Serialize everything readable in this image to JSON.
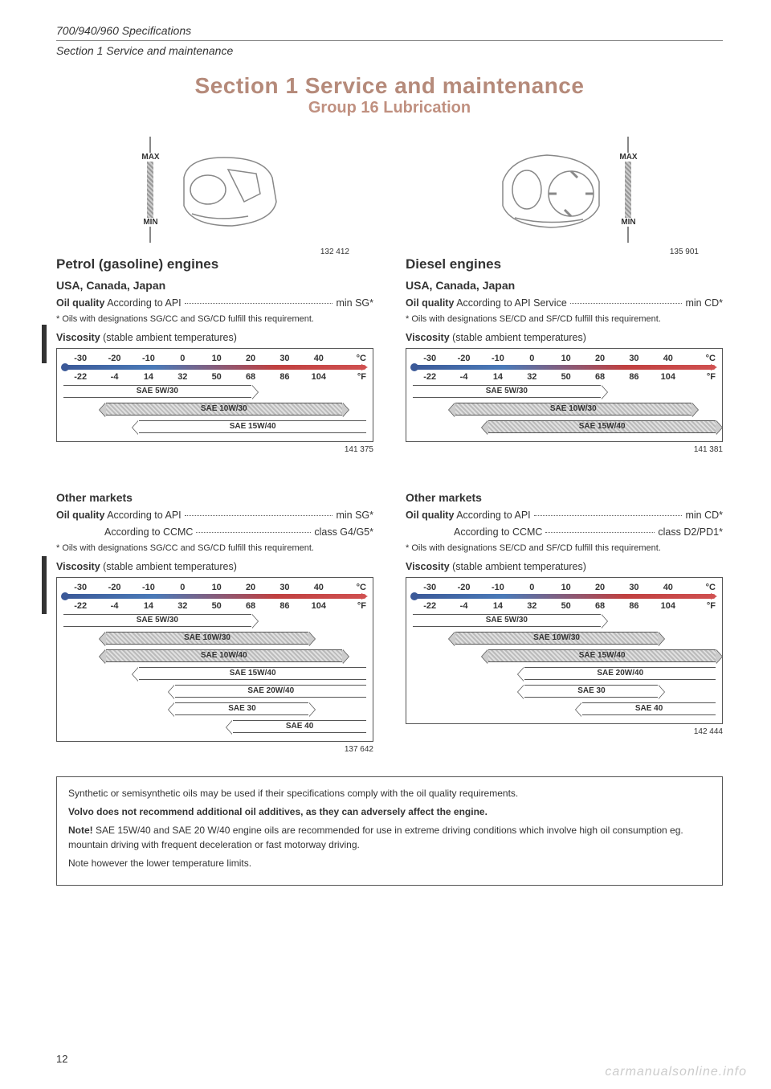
{
  "header": {
    "line1": "700/940/960 Specifications",
    "line2": "Section 1 Service and maintenance"
  },
  "title": {
    "main": "Section 1  Service and maintenance",
    "sub": "Group 16  Lubrication"
  },
  "dipstick": {
    "max": "MAX",
    "min": "MIN"
  },
  "figures": {
    "left_engine": "132 412",
    "right_engine": "135 901",
    "chart1": "141 375",
    "chart2": "141 381",
    "chart3": "137 642",
    "chart4": "142 444"
  },
  "petrol": {
    "heading": "Petrol (gasoline) engines",
    "region1": "USA, Canada, Japan",
    "oil_quality_label": "Oil quality",
    "oil_quality_text": " According to API",
    "oil_quality_value": "min SG*",
    "footnote": "* Oils with designations SG/CC and SG/CD fulfill this requirement.",
    "viscosity_label": "Viscosity",
    "viscosity_text": " (stable ambient temperatures)",
    "region2": "Other markets",
    "ccmc_label": "According to CCMC",
    "ccmc_value": "class G4/G5*"
  },
  "diesel": {
    "heading": "Diesel engines",
    "region1": "USA, Canada, Japan",
    "oil_quality_text": " According to API Service ",
    "oil_quality_value": "min CD*",
    "footnote": "* Oils with designations SE/CD and SF/CD fulfill this requirement.",
    "region2": "Other markets",
    "oil_quality_value2": "min CD*",
    "ccmc_value": "class D2/PD1*"
  },
  "temp_axis": {
    "c_values": [
      "-30",
      "-20",
      "-10",
      "0",
      "10",
      "20",
      "30",
      "40"
    ],
    "c_unit": "°C",
    "f_values": [
      "-22",
      "-4",
      "14",
      "32",
      "50",
      "68",
      "86",
      "104"
    ],
    "f_unit": "°F"
  },
  "oils": {
    "sae5w30": "SAE 5W/30",
    "sae10w30": "SAE 10W/30",
    "sae10w40": "SAE 10W/40",
    "sae15w40": "SAE 15W/40",
    "sae20w40": "SAE 20W/40",
    "sae30": "SAE 30",
    "sae40": "SAE 40"
  },
  "notebox": {
    "p1": "Synthetic or semisynthetic oils may be used if their specifications comply with the oil quality requirements.",
    "p2a": "Volvo does not recommend additional oil additives, as they can adversely affect the engine.",
    "p3a": "Note!",
    "p3b": " SAE 15W/40 and SAE 20 W/40 engine oils are recommended for use in extreme driving conditions which involve high oil consumption eg. mountain driving with frequent deceleration or fast motorway driving.",
    "p4": "Note however the lower temperature limits."
  },
  "pagenum": "12",
  "watermark": "carmanualsonline.info",
  "chart_layouts": {
    "chart_small": [
      {
        "oil": "sae5w30",
        "left_pct": 0,
        "width_pct": 62,
        "hatched": false,
        "open_right": true
      },
      {
        "oil": "sae10w30",
        "left_pct": 14,
        "width_pct": 78,
        "hatched": true
      },
      {
        "oil": "sae15w40",
        "left_pct": 25,
        "width_pct": 75,
        "hatched": false,
        "open_left": true
      }
    ],
    "chart_small_diesel": [
      {
        "oil": "sae5w30",
        "left_pct": 0,
        "width_pct": 62,
        "hatched": false,
        "open_right": true
      },
      {
        "oil": "sae10w30",
        "left_pct": 14,
        "width_pct": 78,
        "hatched": true
      },
      {
        "oil": "sae15w40",
        "left_pct": 25,
        "width_pct": 75,
        "hatched": true
      }
    ],
    "chart_big_petrol": [
      {
        "oil": "sae5w30",
        "left_pct": 0,
        "width_pct": 62,
        "hatched": false,
        "open_right": true
      },
      {
        "oil": "sae10w30",
        "left_pct": 14,
        "width_pct": 67,
        "hatched": true
      },
      {
        "oil": "sae10w40",
        "left_pct": 14,
        "width_pct": 78,
        "hatched": true
      },
      {
        "oil": "sae15w40",
        "left_pct": 25,
        "width_pct": 75,
        "hatched": false,
        "open_left": true
      },
      {
        "oil": "sae20w40",
        "left_pct": 37,
        "width_pct": 63,
        "hatched": false,
        "open_left": true
      },
      {
        "oil": "sae30",
        "left_pct": 37,
        "width_pct": 44,
        "hatched": false,
        "open_left": true,
        "open_right": true
      },
      {
        "oil": "sae40",
        "left_pct": 56,
        "width_pct": 44,
        "hatched": false,
        "open_left": true
      }
    ],
    "chart_big_diesel": [
      {
        "oil": "sae5w30",
        "left_pct": 0,
        "width_pct": 62,
        "hatched": false,
        "open_right": true
      },
      {
        "oil": "sae10w30",
        "left_pct": 14,
        "width_pct": 67,
        "hatched": true
      },
      {
        "oil": "sae15w40",
        "left_pct": 25,
        "width_pct": 75,
        "hatched": true
      },
      {
        "oil": "sae20w40",
        "left_pct": 37,
        "width_pct": 63,
        "hatched": false,
        "open_left": true
      },
      {
        "oil": "sae30",
        "left_pct": 37,
        "width_pct": 44,
        "hatched": false,
        "open_left": true,
        "open_right": true
      },
      {
        "oil": "sae40",
        "left_pct": 56,
        "width_pct": 44,
        "hatched": false,
        "open_left": true
      }
    ]
  }
}
